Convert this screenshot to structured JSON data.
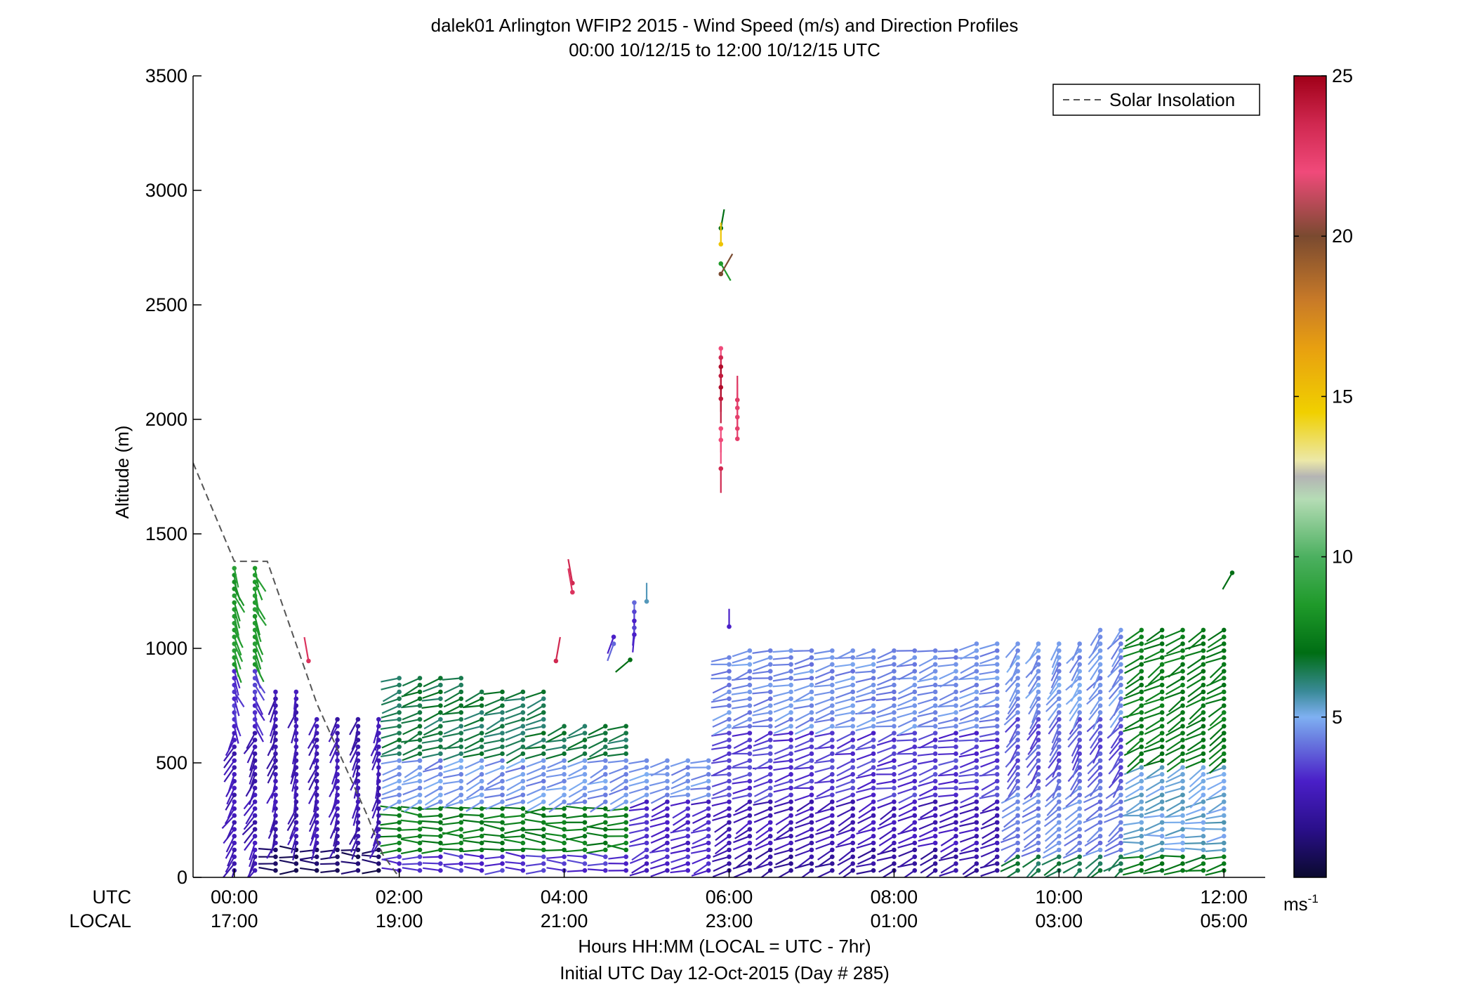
{
  "title_line1": "dalek01 Arlington WFIP2 2015 - Wind Speed (m/s) and Direction Profiles",
  "title_line2": "00:00 10/12/15 to 12:00 10/12/15  UTC",
  "ylabel": "Altitude (m)",
  "xlabel_line1": "Hours HH:MM  (LOCAL = UTC - 7hr)",
  "xlabel_line2": "Initial UTC Day 12-Oct-2015 (Day # 285)",
  "utc_row_label": "UTC",
  "local_row_label": "LOCAL",
  "legend_label": "Solar Insolation",
  "colorbar_unit": "ms",
  "colorbar_unit_exp": "-1",
  "colors": {
    "solar_line": "#555555",
    "axis": "#000000"
  },
  "chart_data": {
    "type": "scatter",
    "x_unit": "UTC hours",
    "xlim": [
      -0.5,
      12.5
    ],
    "ylim": [
      0,
      3500
    ],
    "yticks": [
      0,
      500,
      1000,
      1500,
      2000,
      2500,
      3000,
      3500
    ],
    "xticks_utc": [
      "00:00",
      "02:00",
      "04:00",
      "06:00",
      "08:00",
      "10:00",
      "12:00"
    ],
    "xticks_local": [
      "17:00",
      "19:00",
      "21:00",
      "23:00",
      "01:00",
      "03:00",
      "05:00"
    ],
    "xtick_hours": [
      0,
      2,
      4,
      6,
      8,
      10,
      12
    ],
    "colorbar": {
      "min": 0,
      "max": 25,
      "ticks": [
        5,
        10,
        15,
        20,
        25
      ],
      "stops": [
        {
          "v": 0,
          "c": "#0a0a2e"
        },
        {
          "v": 1.5,
          "c": "#2a0f8a"
        },
        {
          "v": 3,
          "c": "#4a1fc8"
        },
        {
          "v": 4.3,
          "c": "#6a7de0"
        },
        {
          "v": 5,
          "c": "#7fb0f2"
        },
        {
          "v": 5.8,
          "c": "#3a8a98"
        },
        {
          "v": 7,
          "c": "#006e14"
        },
        {
          "v": 8.5,
          "c": "#1f9a2a"
        },
        {
          "v": 10,
          "c": "#4cb060"
        },
        {
          "v": 11.8,
          "c": "#b5dcb5"
        },
        {
          "v": 12.5,
          "c": "#b4b4b4"
        },
        {
          "v": 13,
          "c": "#ece8a8"
        },
        {
          "v": 14.5,
          "c": "#f0d000"
        },
        {
          "v": 16.5,
          "c": "#e8a010"
        },
        {
          "v": 18,
          "c": "#c87a28"
        },
        {
          "v": 20,
          "c": "#7a4a30"
        },
        {
          "v": 22,
          "c": "#f04a7a"
        },
        {
          "v": 23.5,
          "c": "#d02850"
        },
        {
          "v": 25,
          "c": "#a00018"
        }
      ]
    },
    "solar_insolation": {
      "x": [
        -0.5,
        0.0,
        0.4,
        1.0,
        1.3,
        1.6,
        1.8,
        2.0
      ],
      "y": [
        1810,
        1380,
        1380,
        760,
        520,
        280,
        100,
        0
      ]
    },
    "isolated_barbs": [
      {
        "t": 0.9,
        "h": 945,
        "s": 23,
        "dir": 100
      },
      {
        "t": 4.1,
        "h": 1285,
        "s": 23.5,
        "dir": 100
      },
      {
        "t": 4.1,
        "h": 1245,
        "s": 23,
        "dir": 100
      },
      {
        "t": 3.9,
        "h": 945,
        "s": 23.5,
        "dir": 80
      },
      {
        "t": 4.8,
        "h": 950,
        "s": 7,
        "dir": 220
      },
      {
        "t": 4.85,
        "h": 1200,
        "s": 4,
        "dir": 270
      },
      {
        "t": 4.85,
        "h": 1160,
        "s": 3.5,
        "dir": 270
      },
      {
        "t": 4.85,
        "h": 1120,
        "s": 3,
        "dir": 270
      },
      {
        "t": 4.85,
        "h": 1090,
        "s": 3.5,
        "dir": 265
      },
      {
        "t": 4.85,
        "h": 1060,
        "s": 3,
        "dir": 265
      },
      {
        "t": 4.6,
        "h": 1050,
        "s": 3,
        "dir": 250
      },
      {
        "t": 4.6,
        "h": 1020,
        "s": 4,
        "dir": 250
      },
      {
        "t": 5.0,
        "h": 1205,
        "s": 5.5,
        "dir": 90
      },
      {
        "t": 5.9,
        "h": 2835,
        "s": 7,
        "dir": 80
      },
      {
        "t": 5.9,
        "h": 2765,
        "s": 15,
        "dir": 90
      },
      {
        "t": 5.9,
        "h": 2680,
        "s": 8.5,
        "dir": 300
      },
      {
        "t": 5.9,
        "h": 2635,
        "s": 20,
        "dir": 60
      },
      {
        "t": 5.9,
        "h": 2310,
        "s": 22,
        "dir": 270
      },
      {
        "t": 5.9,
        "h": 2270,
        "s": 23.5,
        "dir": 270
      },
      {
        "t": 5.9,
        "h": 2230,
        "s": 24.5,
        "dir": 270
      },
      {
        "t": 5.9,
        "h": 2190,
        "s": 24,
        "dir": 270
      },
      {
        "t": 5.9,
        "h": 2140,
        "s": 24.5,
        "dir": 270
      },
      {
        "t": 5.9,
        "h": 2090,
        "s": 24,
        "dir": 270
      },
      {
        "t": 5.9,
        "h": 1960,
        "s": 22,
        "dir": 270
      },
      {
        "t": 5.9,
        "h": 1910,
        "s": 22,
        "dir": 270
      },
      {
        "t": 5.9,
        "h": 1785,
        "s": 23.5,
        "dir": 270
      },
      {
        "t": 6.1,
        "h": 2085,
        "s": 23,
        "dir": 90
      },
      {
        "t": 6.1,
        "h": 2050,
        "s": 22.5,
        "dir": 90
      },
      {
        "t": 6.1,
        "h": 2010,
        "s": 22.5,
        "dir": 90
      },
      {
        "t": 6.1,
        "h": 1960,
        "s": 22.5,
        "dir": 90
      },
      {
        "t": 6.1,
        "h": 1915,
        "s": 22.5,
        "dir": 90
      },
      {
        "t": 6.0,
        "h": 1095,
        "s": 3,
        "dir": 90
      },
      {
        "t": 12.1,
        "h": 1330,
        "s": 7,
        "dir": 240
      }
    ]
  }
}
